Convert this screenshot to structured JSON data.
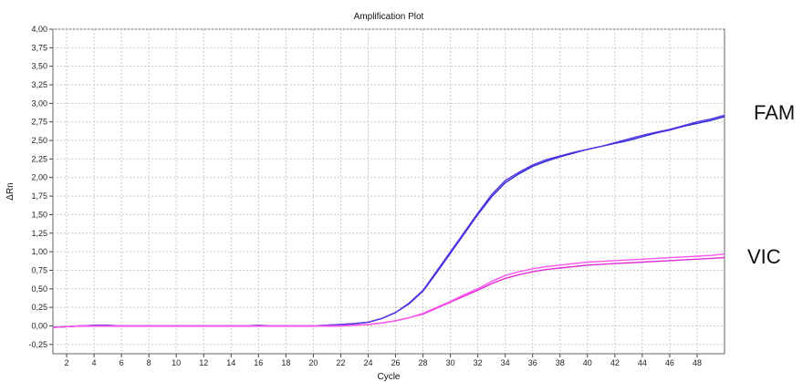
{
  "chart_data": {
    "type": "line",
    "title": "Amplification Plot",
    "xlabel": "Cycle",
    "ylabel": "ΔRn",
    "xlim": [
      1,
      50
    ],
    "ylim": [
      -0.375,
      4.0
    ],
    "grid": true,
    "x_ticks": [
      2,
      4,
      6,
      8,
      10,
      12,
      14,
      16,
      18,
      20,
      22,
      24,
      26,
      28,
      30,
      32,
      34,
      36,
      38,
      40,
      42,
      44,
      46,
      48
    ],
    "y_ticks": [
      -0.25,
      0,
      0.25,
      0.5,
      0.75,
      1.0,
      1.25,
      1.5,
      1.75,
      2.0,
      2.25,
      2.5,
      2.75,
      3.0,
      3.25,
      3.5,
      3.75,
      4.0
    ],
    "y_tick_labels": [
      "-0,25",
      "0,00",
      "0,25",
      "0,50",
      "0,75",
      "1,00",
      "1,25",
      "1,50",
      "1,75",
      "2,00",
      "2,25",
      "2,50",
      "2,75",
      "3,00",
      "3,25",
      "3,50",
      "3,75",
      "4,00"
    ],
    "series": [
      {
        "name": "FAM",
        "color": "#2a2ad8",
        "x": [
          1,
          2,
          3,
          4,
          5,
          6,
          7,
          8,
          9,
          10,
          11,
          12,
          13,
          14,
          15,
          16,
          17,
          18,
          19,
          20,
          21,
          22,
          23,
          24,
          25,
          26,
          27,
          28,
          29,
          30,
          31,
          32,
          33,
          34,
          35,
          36,
          37,
          38,
          39,
          40,
          41,
          42,
          43,
          44,
          45,
          46,
          47,
          48,
          49,
          50
        ],
        "values": [
          -0.02,
          -0.01,
          0,
          0,
          0,
          0,
          0,
          0,
          0,
          0,
          0,
          0,
          0,
          0,
          0,
          0,
          0,
          0,
          0,
          0,
          0.01,
          0.02,
          0.03,
          0.05,
          0.1,
          0.18,
          0.3,
          0.47,
          0.72,
          0.98,
          1.24,
          1.5,
          1.74,
          1.93,
          2.05,
          2.15,
          2.22,
          2.28,
          2.33,
          2.38,
          2.42,
          2.46,
          2.5,
          2.55,
          2.6,
          2.64,
          2.69,
          2.73,
          2.77,
          2.82
        ]
      },
      {
        "name": "",
        "color": "#5a33e8",
        "x": [
          1,
          2,
          3,
          4,
          5,
          6,
          7,
          8,
          9,
          10,
          11,
          12,
          13,
          14,
          15,
          16,
          17,
          18,
          19,
          20,
          21,
          22,
          23,
          24,
          25,
          26,
          27,
          28,
          29,
          30,
          31,
          32,
          33,
          34,
          35,
          36,
          37,
          38,
          39,
          40,
          41,
          42,
          43,
          44,
          45,
          46,
          47,
          48,
          49,
          50
        ],
        "values": [
          -0.02,
          -0.01,
          0,
          0.01,
          0.01,
          0,
          0,
          0,
          0,
          0,
          0,
          0,
          0,
          0,
          0,
          0.01,
          0,
          0,
          0,
          0,
          0.01,
          0.02,
          0.03,
          0.05,
          0.1,
          0.18,
          0.31,
          0.48,
          0.74,
          1.0,
          1.26,
          1.52,
          1.77,
          1.96,
          2.07,
          2.17,
          2.24,
          2.29,
          2.34,
          2.38,
          2.42,
          2.47,
          2.52,
          2.57,
          2.61,
          2.65,
          2.7,
          2.75,
          2.79,
          2.84
        ]
      },
      {
        "name": "VIC",
        "color": "#e02ad8",
        "x": [
          1,
          2,
          3,
          4,
          5,
          6,
          7,
          8,
          9,
          10,
          11,
          12,
          13,
          14,
          15,
          16,
          17,
          18,
          19,
          20,
          21,
          22,
          23,
          24,
          25,
          26,
          27,
          28,
          29,
          30,
          31,
          32,
          33,
          34,
          35,
          36,
          37,
          38,
          39,
          40,
          41,
          42,
          43,
          44,
          45,
          46,
          47,
          48,
          49,
          50
        ],
        "values": [
          -0.02,
          -0.01,
          0,
          0,
          0,
          0,
          0,
          0,
          0,
          0,
          0,
          0,
          0,
          0,
          0,
          0,
          0,
          0,
          0,
          0,
          0,
          0,
          0.01,
          0.02,
          0.04,
          0.07,
          0.11,
          0.16,
          0.24,
          0.32,
          0.4,
          0.48,
          0.57,
          0.64,
          0.69,
          0.73,
          0.76,
          0.78,
          0.8,
          0.82,
          0.83,
          0.84,
          0.85,
          0.86,
          0.87,
          0.88,
          0.89,
          0.9,
          0.91,
          0.92
        ]
      },
      {
        "name": "",
        "color": "#ff55ee",
        "x": [
          1,
          2,
          3,
          4,
          5,
          6,
          7,
          8,
          9,
          10,
          11,
          12,
          13,
          14,
          15,
          16,
          17,
          18,
          19,
          20,
          21,
          22,
          23,
          24,
          25,
          26,
          27,
          28,
          29,
          30,
          31,
          32,
          33,
          34,
          35,
          36,
          37,
          38,
          39,
          40,
          41,
          42,
          43,
          44,
          45,
          46,
          47,
          48,
          49,
          50
        ],
        "values": [
          -0.02,
          -0.01,
          0,
          0,
          0,
          0,
          0,
          0,
          0,
          0,
          0,
          0,
          0,
          0,
          0,
          0,
          0,
          0,
          0,
          0,
          0,
          0,
          0.01,
          0.02,
          0.04,
          0.07,
          0.11,
          0.17,
          0.25,
          0.33,
          0.42,
          0.5,
          0.6,
          0.68,
          0.73,
          0.77,
          0.8,
          0.82,
          0.84,
          0.86,
          0.87,
          0.88,
          0.89,
          0.9,
          0.91,
          0.92,
          0.93,
          0.94,
          0.95,
          0.97
        ]
      }
    ],
    "annotations": [
      {
        "text": "FAM",
        "color": "#111111"
      },
      {
        "text": "VIC",
        "color": "#111111"
      }
    ]
  }
}
